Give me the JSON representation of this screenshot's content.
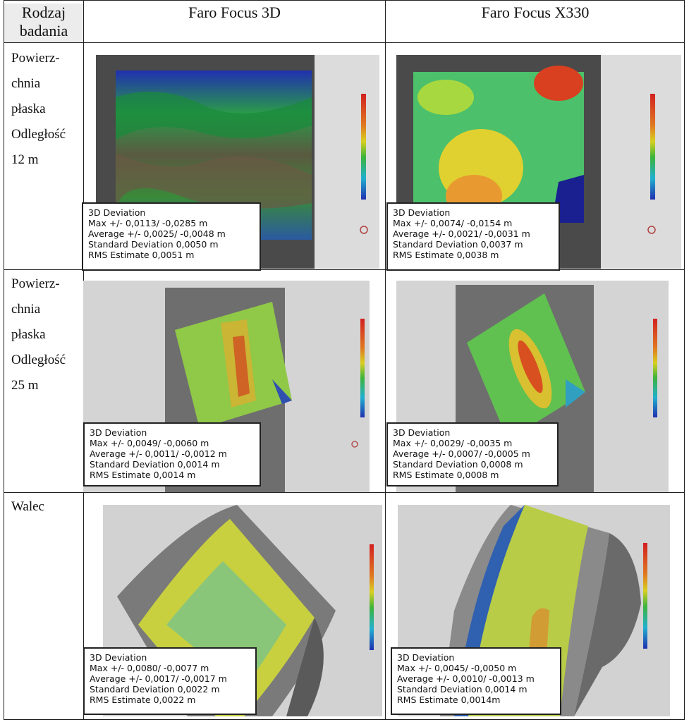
{
  "table": {
    "headers": {
      "type": [
        "Rodzaj",
        "badania"
      ],
      "scanner1": "Faro Focus 3D",
      "scanner2": "Faro Focus X330"
    },
    "rows": [
      {
        "label": [
          "Powierz-",
          "chnia",
          "płaska",
          "Odległość",
          "12 m"
        ],
        "cells": [
          {
            "title": "3D Deviation",
            "max": "Max +/- 0,0113/ -0,0285 m",
            "avg": "Average +/- 0,0025/ -0,0048 m",
            "std": "Standard Deviation  0,0050 m",
            "rms": "RMS Estimate 0,0051 m"
          },
          {
            "title": "3D Deviation",
            "max": "Max +/- 0,0074/ -0,0154 m",
            "avg": "Average +/- 0,0021/ -0,0031 m",
            "std": "Standard Deviation  0,0037 m",
            "rms": "RMS Estimate 0,0038 m"
          }
        ]
      },
      {
        "label": [
          "Powierz-",
          "chnia",
          "płaska",
          "Odległość",
          "25 m"
        ],
        "cells": [
          {
            "title": "3D Deviation",
            "max": "Max +/- 0,0049/ -0,0060 m",
            "avg": "Average +/- 0,0011/ -0,0012 m",
            "std": "Standard Deviation  0,0014 m",
            "rms": "RMS Estimate 0,0014 m"
          },
          {
            "title": "3D Deviation",
            "max": "Max +/- 0,0029/ -0,0035 m",
            "avg": "Average +/- 0,0007/ -0,0005 m",
            "std": "Standard Deviation  0,0008 m",
            "rms": "RMS Estimate 0,0008 m"
          }
        ]
      },
      {
        "label": [
          "Walec"
        ],
        "cells": [
          {
            "title": "3D Deviation",
            "max": "Max +/- 0,0080/ -0,0077 m",
            "avg": "Average +/- 0,0017/ -0,0017 m",
            "std": "Standard Deviation  0,0022 m",
            "rms": "RMS Estimate 0,0022 m"
          },
          {
            "title": "3D Deviation",
            "max": "Max +/- 0,0045/ -0,0050 m",
            "avg": "Average +/- 0,0010/ -0,0013 m",
            "std": "Standard Deviation  0,0014 m",
            "rms": "RMS Estimate 0,0014m"
          }
        ]
      }
    ]
  },
  "colors": {
    "scale_high": "#d22020",
    "scale_mid": "#d8d020",
    "scale_green": "#3cb43c",
    "scale_low": "#2030b0",
    "viewport_bg": "#d8d8d8",
    "frame_dark": "#4a4a4a"
  }
}
